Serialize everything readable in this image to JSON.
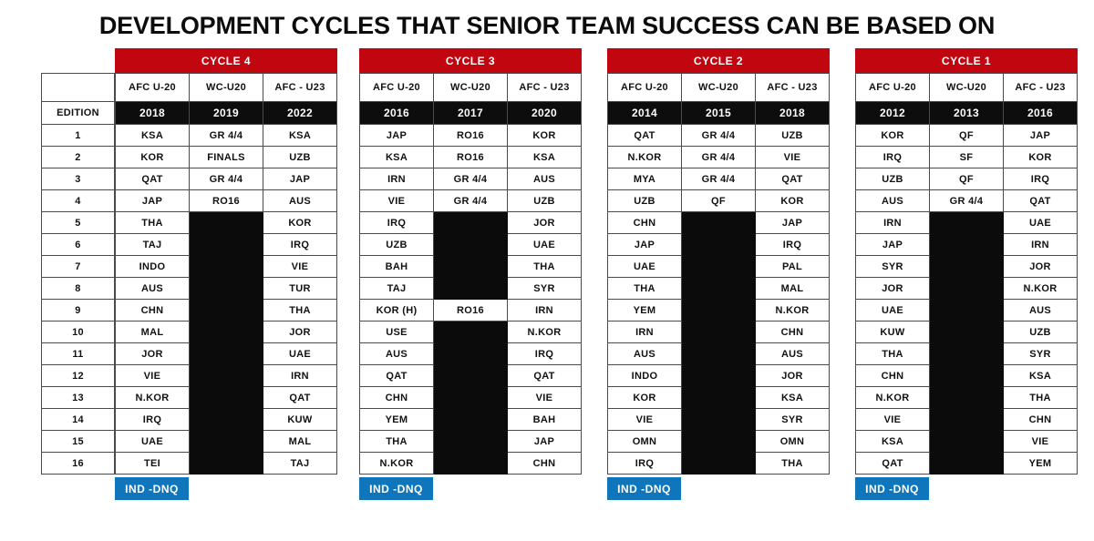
{
  "colors": {
    "red": "#c20610",
    "blue": "#0f76bc",
    "cell_black": "#0b0b0b",
    "border": "#4a4a4a"
  },
  "chart_data": {
    "type": "table",
    "title": "DEVELOPMENT CYCLES THAT SENIOR TEAM SUCCESS CAN BE BASED ON",
    "edition_label": "EDITION",
    "dnq_label": "IND -DNQ",
    "row_numbers": [
      "1",
      "2",
      "3",
      "4",
      "5",
      "6",
      "7",
      "8",
      "9",
      "10",
      "11",
      "12",
      "13",
      "14",
      "15",
      "16"
    ],
    "cycles": [
      {
        "name": "CYCLE 4",
        "columns": [
          "AFC U-20",
          "WC-U20",
          "AFC - U23"
        ],
        "editions": [
          "2018",
          "2019",
          "2022"
        ],
        "rows": [
          [
            "KSA",
            "GR 4/4",
            "KSA"
          ],
          [
            "KOR",
            "FINALS",
            "UZB"
          ],
          [
            "QAT",
            "GR 4/4",
            "JAP"
          ],
          [
            "JAP",
            "RO16",
            "AUS"
          ],
          [
            "THA",
            null,
            "KOR"
          ],
          [
            "TAJ",
            null,
            "IRQ"
          ],
          [
            "INDO",
            null,
            "VIE"
          ],
          [
            "AUS",
            null,
            "TUR"
          ],
          [
            "CHN",
            null,
            "THA"
          ],
          [
            "MAL",
            null,
            "JOR"
          ],
          [
            "JOR",
            null,
            "UAE"
          ],
          [
            "VIE",
            null,
            "IRN"
          ],
          [
            "N.KOR",
            null,
            "QAT"
          ],
          [
            "IRQ",
            null,
            "KUW"
          ],
          [
            "UAE",
            null,
            "MAL"
          ],
          [
            "TEI",
            null,
            "TAJ"
          ]
        ]
      },
      {
        "name": "CYCLE 3",
        "columns": [
          "AFC U-20",
          "WC-U20",
          "AFC - U23"
        ],
        "editions": [
          "2016",
          "2017",
          "2020"
        ],
        "rows": [
          [
            "JAP",
            "RO16",
            "KOR"
          ],
          [
            "KSA",
            "RO16",
            "KSA"
          ],
          [
            "IRN",
            "GR 4/4",
            "AUS"
          ],
          [
            "VIE",
            "GR 4/4",
            "UZB"
          ],
          [
            "IRQ",
            null,
            "JOR"
          ],
          [
            "UZB",
            null,
            "UAE"
          ],
          [
            "BAH",
            null,
            "THA"
          ],
          [
            "TAJ",
            null,
            "SYR"
          ],
          [
            "KOR (H)",
            "RO16",
            "IRN"
          ],
          [
            "USE",
            null,
            "N.KOR"
          ],
          [
            "AUS",
            null,
            "IRQ"
          ],
          [
            "QAT",
            null,
            "QAT"
          ],
          [
            "CHN",
            null,
            "VIE"
          ],
          [
            "YEM",
            null,
            "BAH"
          ],
          [
            "THA",
            null,
            "JAP"
          ],
          [
            "N.KOR",
            null,
            "CHN"
          ]
        ]
      },
      {
        "name": "CYCLE 2",
        "columns": [
          "AFC U-20",
          "WC-U20",
          "AFC - U23"
        ],
        "editions": [
          "2014",
          "2015",
          "2018"
        ],
        "rows": [
          [
            "QAT",
            "GR 4/4",
            "UZB"
          ],
          [
            "N.KOR",
            "GR 4/4",
            "VIE"
          ],
          [
            "MYA",
            "GR 4/4",
            "QAT"
          ],
          [
            "UZB",
            "QF",
            "KOR"
          ],
          [
            "CHN",
            null,
            "JAP"
          ],
          [
            "JAP",
            null,
            "IRQ"
          ],
          [
            "UAE",
            null,
            "PAL"
          ],
          [
            "THA",
            null,
            "MAL"
          ],
          [
            "YEM",
            null,
            "N.KOR"
          ],
          [
            "IRN",
            null,
            "CHN"
          ],
          [
            "AUS",
            null,
            "AUS"
          ],
          [
            "INDO",
            null,
            "JOR"
          ],
          [
            "KOR",
            null,
            "KSA"
          ],
          [
            "VIE",
            null,
            "SYR"
          ],
          [
            "OMN",
            null,
            "OMN"
          ],
          [
            "IRQ",
            null,
            "THA"
          ]
        ]
      },
      {
        "name": "CYCLE 1",
        "columns": [
          "AFC U-20",
          "WC-U20",
          "AFC - U23"
        ],
        "editions": [
          "2012",
          "2013",
          "2016"
        ],
        "rows": [
          [
            "KOR",
            "QF",
            "JAP"
          ],
          [
            "IRQ",
            "SF",
            "KOR"
          ],
          [
            "UZB",
            "QF",
            "IRQ"
          ],
          [
            "AUS",
            "GR 4/4",
            "QAT"
          ],
          [
            "IRN",
            null,
            "UAE"
          ],
          [
            "JAP",
            null,
            "IRN"
          ],
          [
            "SYR",
            null,
            "JOR"
          ],
          [
            "JOR",
            null,
            "N.KOR"
          ],
          [
            "UAE",
            null,
            "AUS"
          ],
          [
            "KUW",
            null,
            "UZB"
          ],
          [
            "THA",
            null,
            "SYR"
          ],
          [
            "CHN",
            null,
            "KSA"
          ],
          [
            "N.KOR",
            null,
            "THA"
          ],
          [
            "VIE",
            null,
            "CHN"
          ],
          [
            "KSA",
            null,
            "VIE"
          ],
          [
            "QAT",
            null,
            "YEM"
          ]
        ]
      }
    ]
  }
}
